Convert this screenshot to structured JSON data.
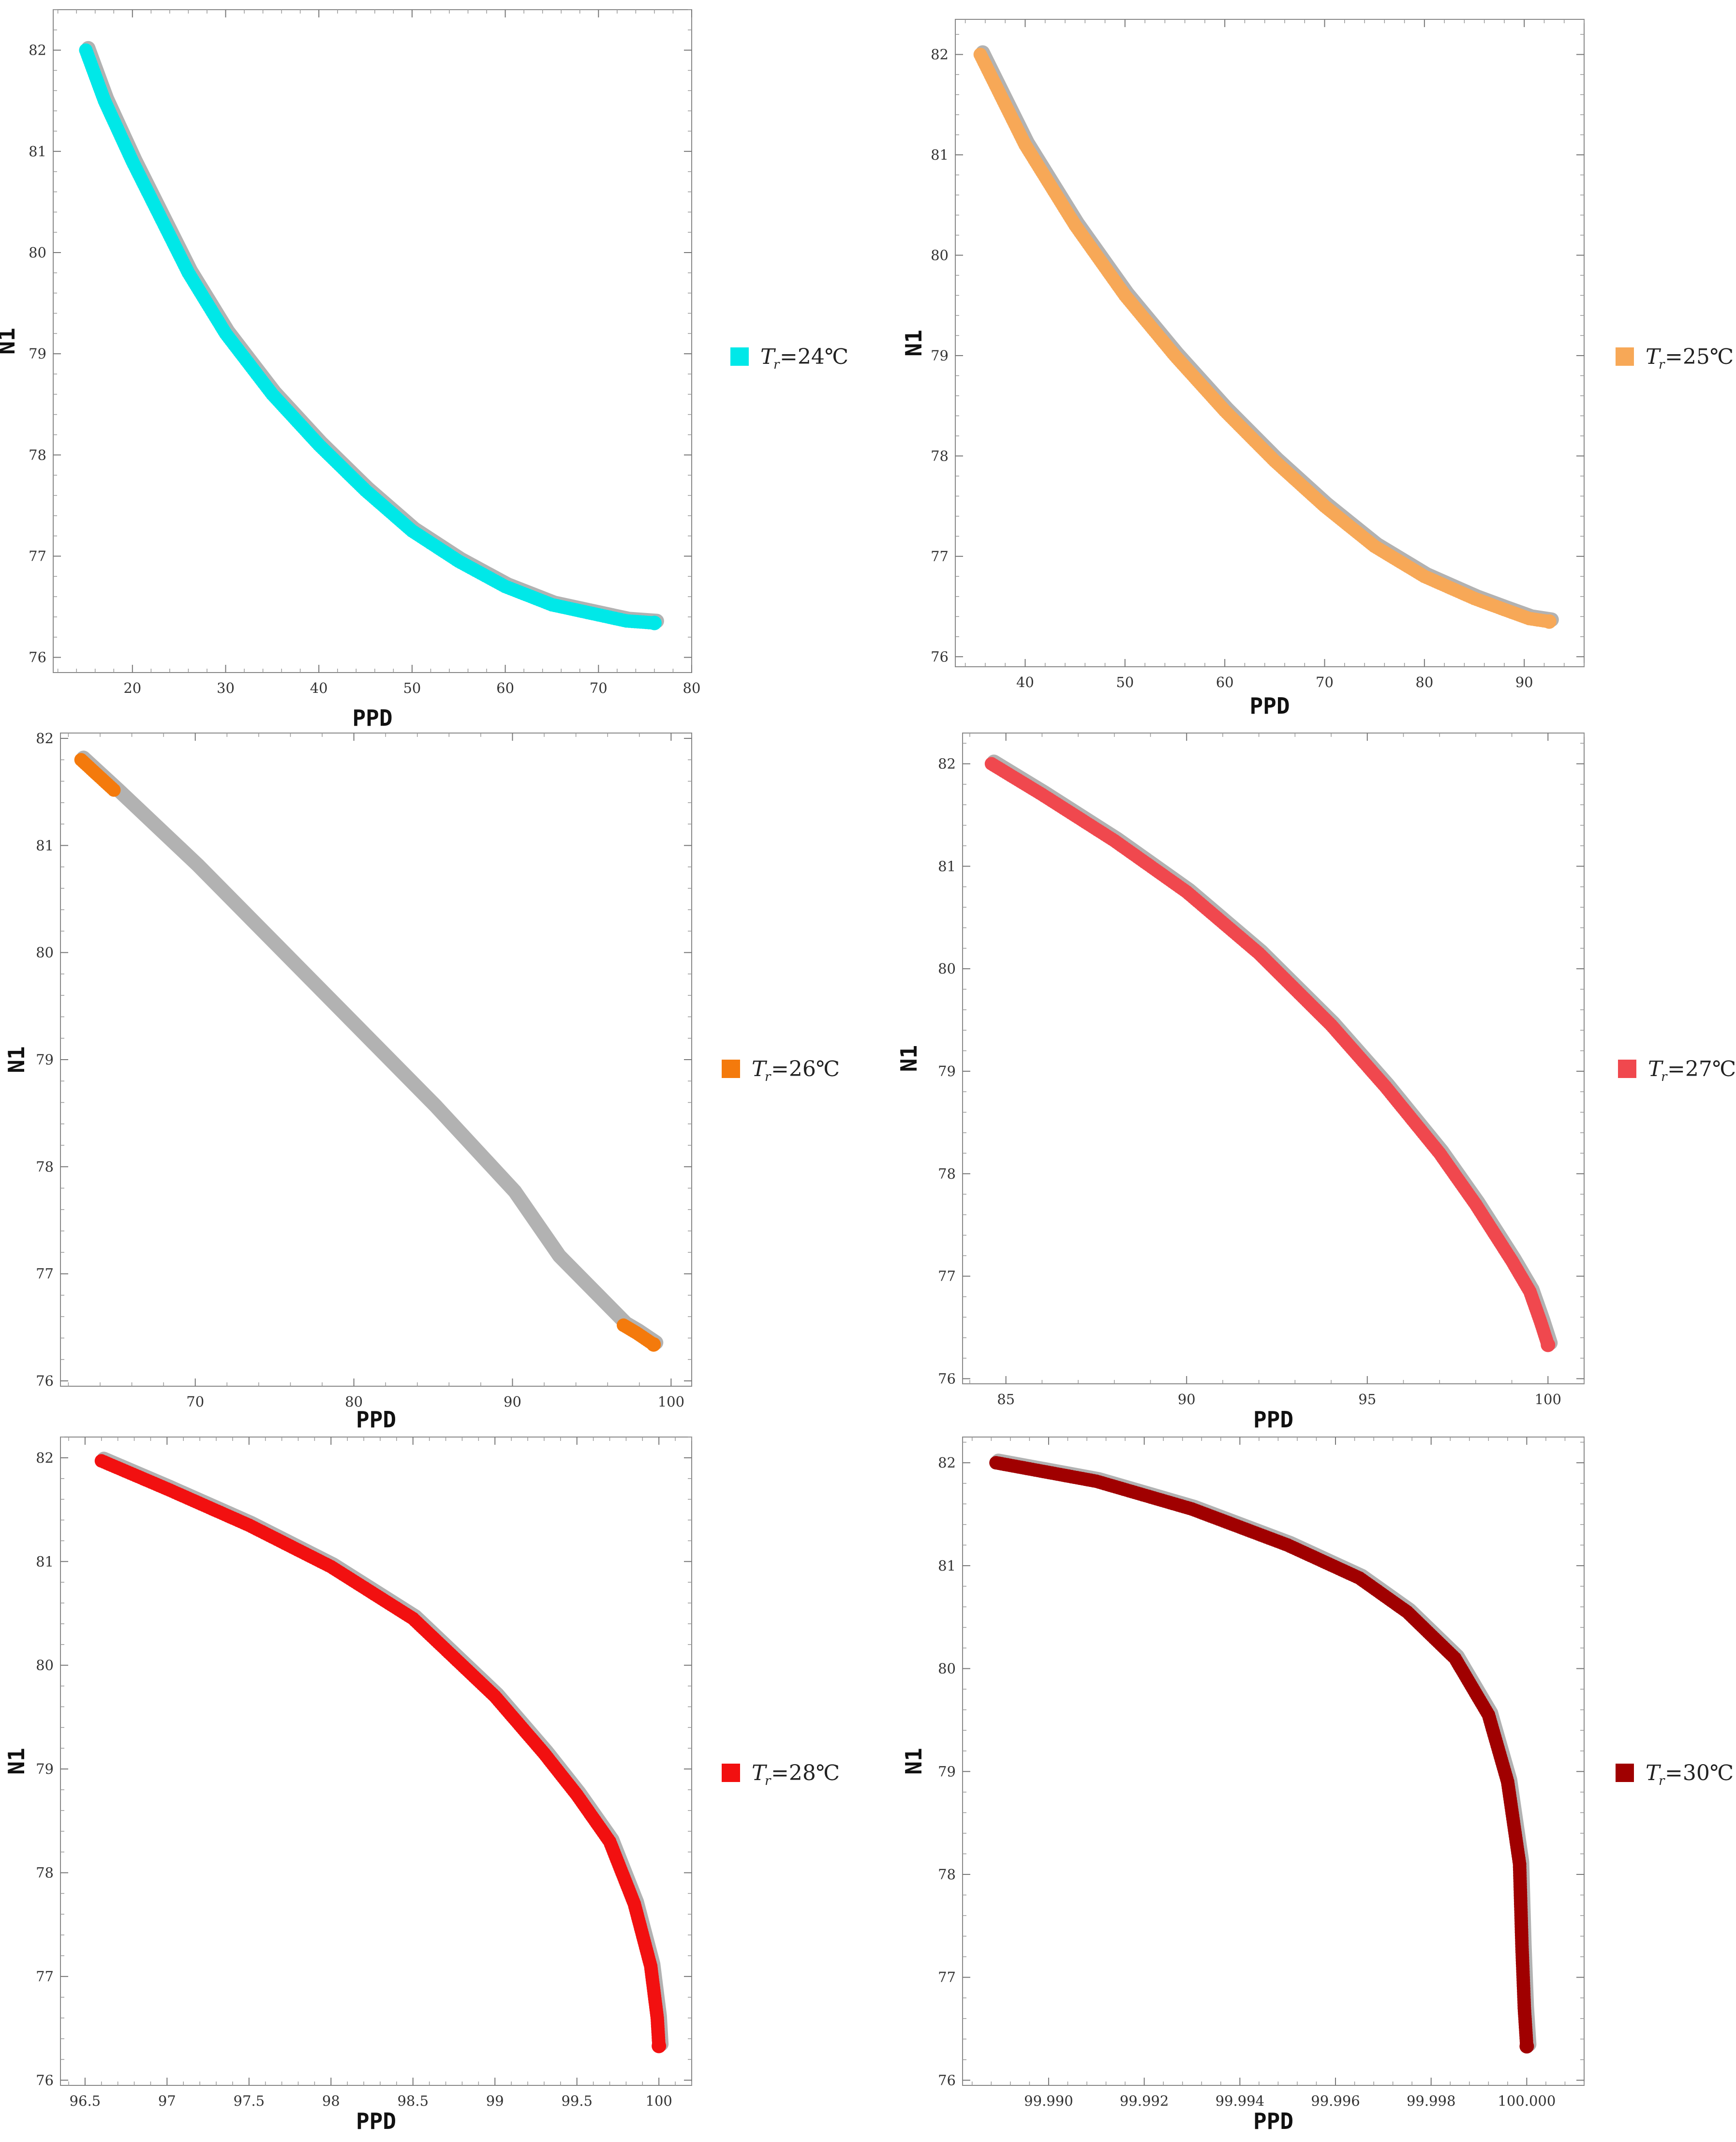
{
  "chart_data": [
    {
      "type": "scatter",
      "xlabel": "PPD",
      "ylabel": "N1",
      "xlim": [
        11.5,
        80
      ],
      "ylim": [
        75.85,
        82.4
      ],
      "xticks": [
        20,
        30,
        40,
        50,
        60,
        70,
        80
      ],
      "yticks": [
        76,
        77,
        78,
        79,
        80,
        81,
        82
      ],
      "grid": false,
      "legend_position": "right",
      "series": [
        {
          "name": "T_r=24°C",
          "legend_main": "T",
          "legend_sub": "r",
          "legend_rest": "=24℃",
          "color": "#00e8e8",
          "points": [
            [
              15,
              82.0
            ],
            [
              17,
              81.5
            ],
            [
              20,
              80.9
            ],
            [
              23,
              80.35
            ],
            [
              26,
              79.8
            ],
            [
              30,
              79.2
            ],
            [
              35,
              78.6
            ],
            [
              40,
              78.1
            ],
            [
              45,
              77.65
            ],
            [
              50,
              77.25
            ],
            [
              55,
              76.95
            ],
            [
              60,
              76.7
            ],
            [
              65,
              76.52
            ],
            [
              70,
              76.42
            ],
            [
              73,
              76.36
            ],
            [
              76,
              76.34
            ]
          ]
        }
      ]
    },
    {
      "type": "scatter",
      "xlabel": "PPD",
      "ylabel": "N1",
      "xlim": [
        33,
        96
      ],
      "ylim": [
        75.9,
        82.35
      ],
      "xticks": [
        40,
        50,
        60,
        70,
        80,
        90
      ],
      "yticks": [
        76,
        77,
        78,
        79,
        80,
        81,
        82
      ],
      "grid": false,
      "legend_position": "right",
      "series": [
        {
          "name": "T_r=25°C",
          "legend_main": "T",
          "legend_sub": "r",
          "legend_rest": "=25℃",
          "color": "#f7a857",
          "points": [
            [
              35.5,
              82.0
            ],
            [
              40,
              81.1
            ],
            [
              45,
              80.3
            ],
            [
              50,
              79.6
            ],
            [
              55,
              79.0
            ],
            [
              60,
              78.45
            ],
            [
              65,
              77.95
            ],
            [
              70,
              77.5
            ],
            [
              75,
              77.1
            ],
            [
              80,
              76.8
            ],
            [
              85,
              76.58
            ],
            [
              88,
              76.47
            ],
            [
              90.5,
              76.38
            ],
            [
              92.5,
              76.35
            ]
          ]
        }
      ]
    },
    {
      "type": "scatter",
      "xlabel": "PPD",
      "ylabel": "N1",
      "xlim": [
        61.5,
        101.3
      ],
      "ylim": [
        75.95,
        82.05
      ],
      "xticks": [
        70,
        80,
        90,
        100
      ],
      "yticks": [
        76,
        77,
        78,
        79,
        80,
        81,
        82
      ],
      "grid": false,
      "legend_position": "right",
      "series": [
        {
          "name": "T_r=26°C",
          "legend_main": "T",
          "legend_sub": "r",
          "legend_rest": "=26℃",
          "color": "#f47a0c",
          "points": [
            [
              62.8,
              81.8
            ],
            [
              65,
              81.5
            ],
            [
              70,
              80.8
            ],
            [
              75,
              80.05
            ],
            [
              80,
              79.3
            ],
            [
              85,
              78.55
            ],
            [
              90,
              77.75
            ],
            [
              92.8,
              77.15
            ],
            [
              97,
              76.52
            ],
            [
              97.8,
              76.45
            ],
            [
              98.5,
              76.38
            ],
            [
              98.9,
              76.34
            ]
          ]
        }
      ]
    },
    {
      "type": "scatter",
      "xlabel": "PPD",
      "ylabel": "N1",
      "xlim": [
        83.8,
        101.0
      ],
      "ylim": [
        75.95,
        82.3
      ],
      "xticks": [
        85,
        90,
        95,
        100
      ],
      "yticks": [
        76,
        77,
        78,
        79,
        80,
        81,
        82
      ],
      "grid": false,
      "legend_position": "right",
      "series": [
        {
          "name": "T_r=27°C",
          "legend_main": "T",
          "legend_sub": "r",
          "legend_rest": "=27℃",
          "color": "#f0484e",
          "points": [
            [
              84.6,
              82.0
            ],
            [
              86,
              81.7
            ],
            [
              88,
              81.25
            ],
            [
              90,
              80.75
            ],
            [
              92,
              80.15
            ],
            [
              94,
              79.45
            ],
            [
              95.5,
              78.85
            ],
            [
              97,
              78.2
            ],
            [
              98,
              77.7
            ],
            [
              99,
              77.15
            ],
            [
              99.5,
              76.85
            ],
            [
              99.8,
              76.55
            ],
            [
              100,
              76.33
            ]
          ]
        }
      ]
    },
    {
      "type": "scatter",
      "xlabel": "PPD",
      "ylabel": "N1",
      "xlim": [
        96.35,
        100.2
      ],
      "ylim": [
        75.95,
        82.2
      ],
      "xticks": [
        96.5,
        97.0,
        97.5,
        98.0,
        98.5,
        99.0,
        99.5,
        100.0
      ],
      "yticks": [
        76,
        77,
        78,
        79,
        80,
        81,
        82
      ],
      "grid": false,
      "legend_position": "right",
      "series": [
        {
          "name": "T_r=28°C",
          "legend_main": "T",
          "legend_sub": "r",
          "legend_rest": "=28℃",
          "color": "#f21010",
          "points": [
            [
              96.6,
              81.97
            ],
            [
              97.0,
              81.7
            ],
            [
              97.5,
              81.35
            ],
            [
              98.0,
              80.95
            ],
            [
              98.5,
              80.45
            ],
            [
              99.0,
              79.7
            ],
            [
              99.3,
              79.15
            ],
            [
              99.5,
              78.75
            ],
            [
              99.7,
              78.3
            ],
            [
              99.85,
              77.7
            ],
            [
              99.95,
              77.1
            ],
            [
              99.99,
              76.6
            ],
            [
              100.0,
              76.33
            ]
          ]
        }
      ]
    },
    {
      "type": "scatter",
      "xlabel": "PPD",
      "ylabel": "N1",
      "xlim": [
        99.9882,
        100.0012
      ],
      "ylim": [
        75.95,
        82.25
      ],
      "xticks": [
        99.99,
        99.992,
        99.994,
        99.996,
        99.998,
        100.0
      ],
      "xtick_labels": [
        "99.990",
        "99.992",
        "99.994",
        "99.996",
        "99.998",
        "100.000"
      ],
      "yticks": [
        76,
        77,
        78,
        79,
        80,
        81,
        82
      ],
      "grid": false,
      "legend_position": "right",
      "series": [
        {
          "name": "T_r=30°C",
          "legend_main": "T",
          "legend_sub": "r",
          "legend_rest": "=30℃",
          "color": "#a00000",
          "points": [
            [
              99.9889,
              82.0
            ],
            [
              99.991,
              81.82
            ],
            [
              99.993,
              81.55
            ],
            [
              99.995,
              81.2
            ],
            [
              99.9965,
              80.88
            ],
            [
              99.9975,
              80.55
            ],
            [
              99.9985,
              80.1
            ],
            [
              99.9992,
              79.55
            ],
            [
              99.9996,
              78.9
            ],
            [
              99.99985,
              78.1
            ],
            [
              99.9999,
              77.3
            ],
            [
              99.99995,
              76.7
            ],
            [
              100.0,
              76.33
            ]
          ]
        }
      ]
    }
  ]
}
